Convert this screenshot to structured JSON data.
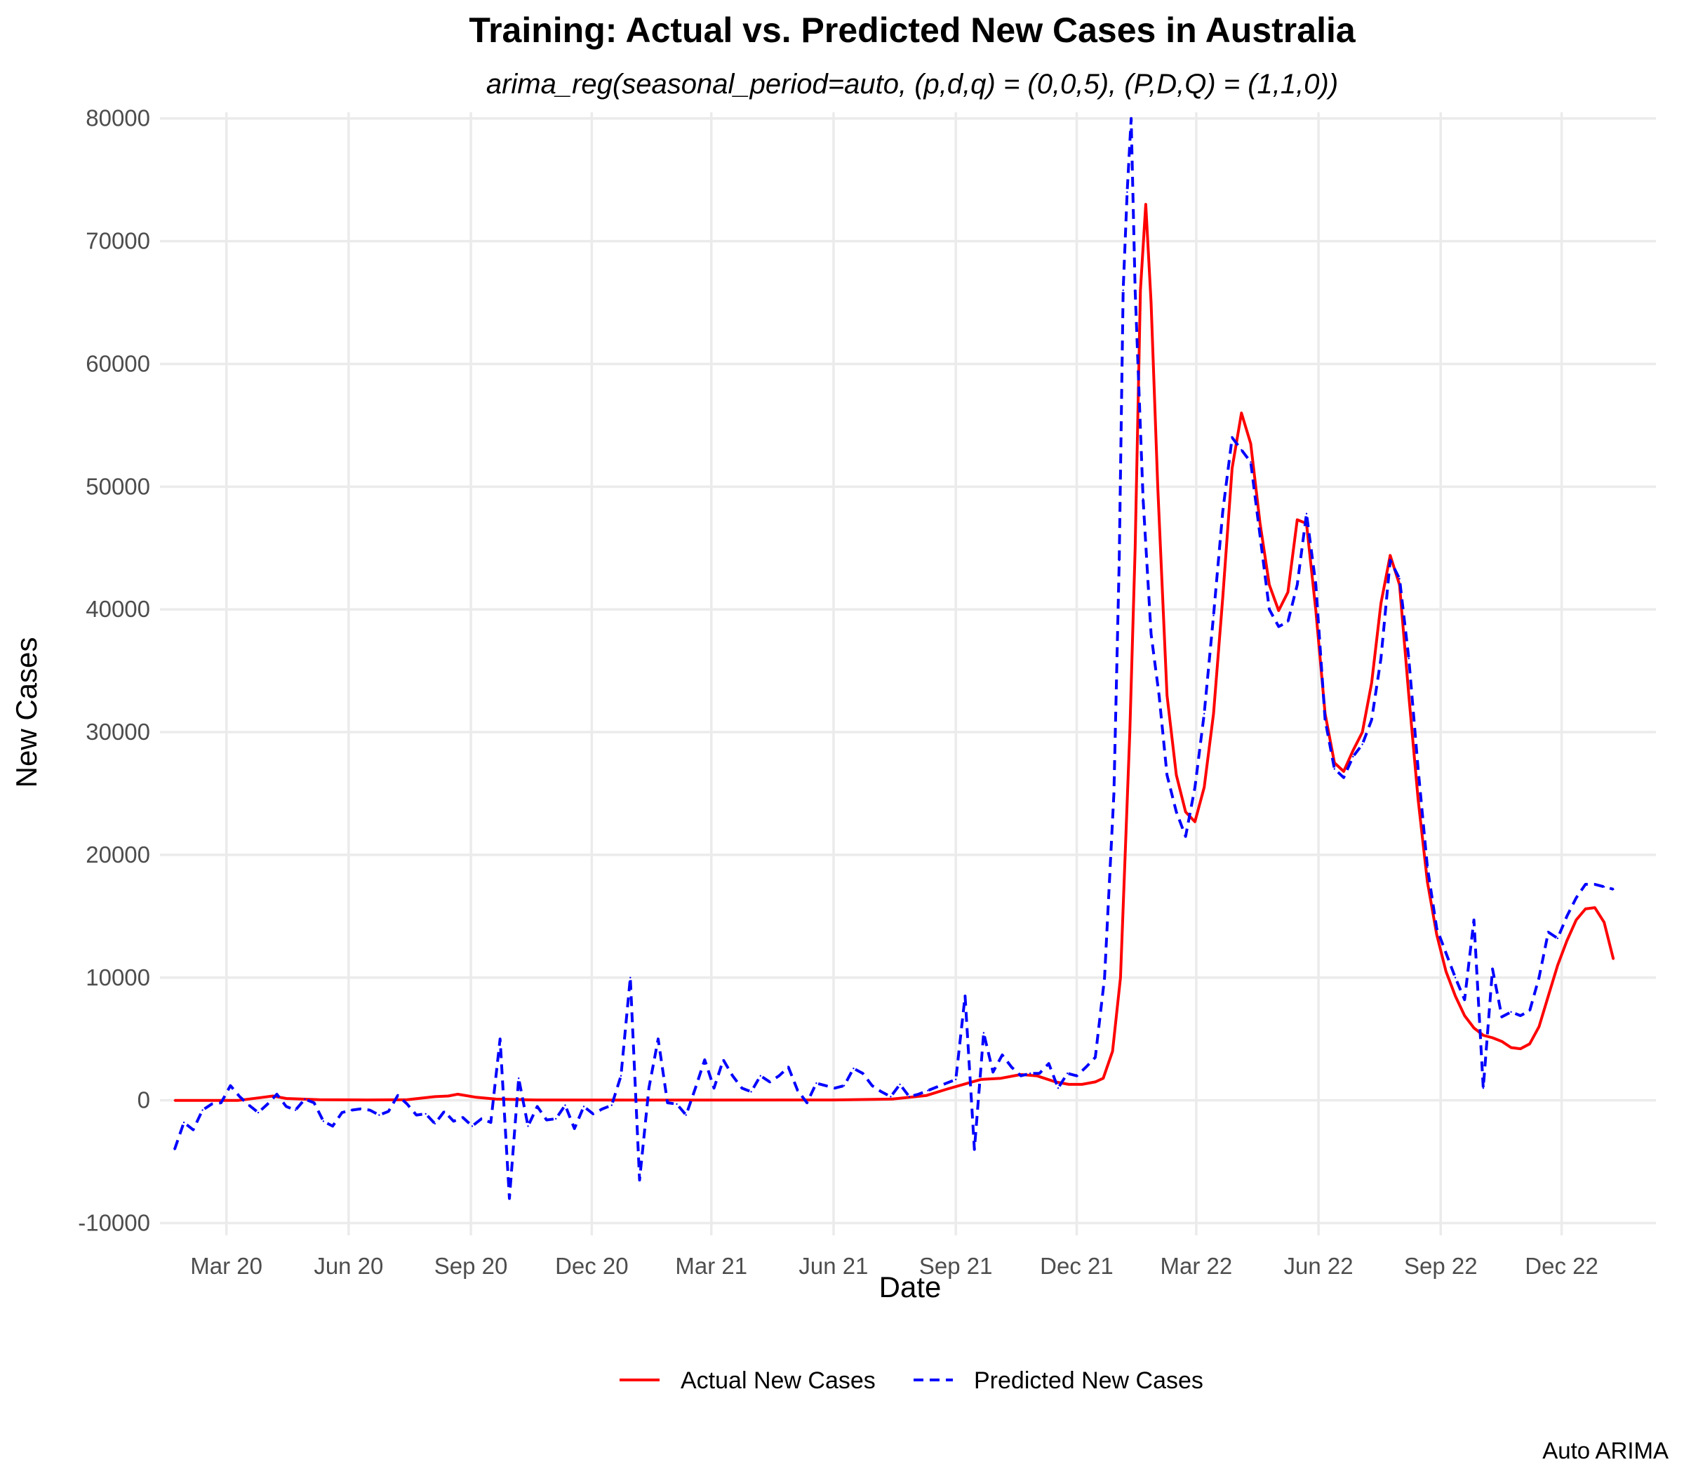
{
  "chart_data": {
    "type": "line",
    "title": "Training: Actual vs. Predicted New Cases in Australia",
    "subtitle": "arima_reg(seasonal_period=auto, (p,d,q) = (0,0,5), (P,D,Q) = (1,1,0))",
    "xlabel": "Date",
    "ylabel": "New Cases",
    "caption": "Auto ARIMA",
    "x_ticks": [
      "Mar 20",
      "Jun 20",
      "Sep 20",
      "Dec 20",
      "Mar 21",
      "Jun 21",
      "Sep 21",
      "Dec 21",
      "Mar 22",
      "Jun 22",
      "Sep 22",
      "Dec 22"
    ],
    "y_ticks": [
      "-10000",
      "0",
      "10000",
      "20000",
      "30000",
      "40000",
      "50000",
      "60000",
      "70000",
      "80000"
    ],
    "xlim": [
      "2020-01-11",
      "2023-02-10"
    ],
    "ylim": [
      -11000,
      80500
    ],
    "grid": true,
    "legend_position": "bottom",
    "series": [
      {
        "name": "Actual New Cases",
        "color": "#ff0000",
        "dash": "solid",
        "points": [
          [
            "2020-01-22",
            0
          ],
          [
            "2020-02-20",
            0
          ],
          [
            "2020-03-10",
            0
          ],
          [
            "2020-03-25",
            200
          ],
          [
            "2020-04-05",
            350
          ],
          [
            "2020-04-15",
            150
          ],
          [
            "2020-05-10",
            50
          ],
          [
            "2020-06-15",
            30
          ],
          [
            "2020-07-15",
            50
          ],
          [
            "2020-08-05",
            300
          ],
          [
            "2020-08-15",
            350
          ],
          [
            "2020-08-22",
            500
          ],
          [
            "2020-09-05",
            250
          ],
          [
            "2020-09-20",
            100
          ],
          [
            "2020-10-20",
            30
          ],
          [
            "2021-03-01",
            20
          ],
          [
            "2021-06-01",
            30
          ],
          [
            "2021-07-15",
            100
          ],
          [
            "2021-08-10",
            400
          ],
          [
            "2021-08-25",
            900
          ],
          [
            "2021-09-10",
            1400
          ],
          [
            "2021-09-20",
            1700
          ],
          [
            "2021-10-05",
            1800
          ],
          [
            "2021-10-20",
            2100
          ],
          [
            "2021-11-01",
            2000
          ],
          [
            "2021-11-15",
            1500
          ],
          [
            "2021-11-25",
            1300
          ],
          [
            "2021-12-05",
            1300
          ],
          [
            "2021-12-15",
            1500
          ],
          [
            "2021-12-21",
            1800
          ],
          [
            "2021-12-28",
            4000
          ],
          [
            "2022-01-03",
            10000
          ],
          [
            "2022-01-10",
            30000
          ],
          [
            "2022-01-14",
            45000
          ],
          [
            "2022-01-18",
            66000
          ],
          [
            "2022-01-22",
            73000
          ],
          [
            "2022-01-26",
            65000
          ],
          [
            "2022-01-31",
            50000
          ],
          [
            "2022-02-07",
            33000
          ],
          [
            "2022-02-14",
            26500
          ],
          [
            "2022-02-21",
            23500
          ],
          [
            "2022-02-28",
            22700
          ],
          [
            "2022-03-07",
            25500
          ],
          [
            "2022-03-14",
            31500
          ],
          [
            "2022-03-21",
            41000
          ],
          [
            "2022-03-28",
            51500
          ],
          [
            "2022-04-04",
            56000
          ],
          [
            "2022-04-11",
            53500
          ],
          [
            "2022-04-18",
            47000
          ],
          [
            "2022-04-25",
            42000
          ],
          [
            "2022-05-02",
            39900
          ],
          [
            "2022-05-09",
            41400
          ],
          [
            "2022-05-16",
            47300
          ],
          [
            "2022-05-23",
            47000
          ],
          [
            "2022-05-30",
            39900
          ],
          [
            "2022-06-06",
            31500
          ],
          [
            "2022-06-13",
            27500
          ],
          [
            "2022-06-20",
            26800
          ],
          [
            "2022-06-27",
            28500
          ],
          [
            "2022-07-04",
            30000
          ],
          [
            "2022-07-11",
            34000
          ],
          [
            "2022-07-18",
            40500
          ],
          [
            "2022-07-25",
            44400
          ],
          [
            "2022-08-01",
            42000
          ],
          [
            "2022-08-08",
            33000
          ],
          [
            "2022-08-15",
            24500
          ],
          [
            "2022-08-22",
            17800
          ],
          [
            "2022-08-29",
            13500
          ],
          [
            "2022-09-05",
            10500
          ],
          [
            "2022-09-12",
            8500
          ],
          [
            "2022-09-19",
            6900
          ],
          [
            "2022-09-26",
            5900
          ],
          [
            "2022-10-03",
            5300
          ],
          [
            "2022-10-10",
            5100
          ],
          [
            "2022-10-17",
            4800
          ],
          [
            "2022-10-24",
            4300
          ],
          [
            "2022-10-31",
            4200
          ],
          [
            "2022-11-07",
            4600
          ],
          [
            "2022-11-14",
            6000
          ],
          [
            "2022-11-21",
            8500
          ],
          [
            "2022-11-28",
            11000
          ],
          [
            "2022-12-05",
            13000
          ],
          [
            "2022-12-12",
            14700
          ],
          [
            "2022-12-19",
            15600
          ],
          [
            "2022-12-26",
            15700
          ],
          [
            "2023-01-02",
            14500
          ],
          [
            "2023-01-09",
            11500
          ]
        ]
      },
      {
        "name": "Predicted New Cases",
        "color": "#0000ff",
        "dash": "dashed",
        "points": [
          [
            "2020-01-22",
            -4000
          ],
          [
            "2020-01-29",
            -1800
          ],
          [
            "2020-02-05",
            -2400
          ],
          [
            "2020-02-12",
            -800
          ],
          [
            "2020-02-19",
            -300
          ],
          [
            "2020-02-26",
            -200
          ],
          [
            "2020-03-04",
            1200
          ],
          [
            "2020-03-11",
            300
          ],
          [
            "2020-03-18",
            -400
          ],
          [
            "2020-03-25",
            -1000
          ],
          [
            "2020-04-01",
            -300
          ],
          [
            "2020-04-08",
            500
          ],
          [
            "2020-04-15",
            -500
          ],
          [
            "2020-04-22",
            -800
          ],
          [
            "2020-04-29",
            100
          ],
          [
            "2020-05-06",
            -200
          ],
          [
            "2020-05-13",
            -1700
          ],
          [
            "2020-05-20",
            -2100
          ],
          [
            "2020-05-27",
            -1000
          ],
          [
            "2020-06-03",
            -800
          ],
          [
            "2020-06-10",
            -700
          ],
          [
            "2020-06-17",
            -800
          ],
          [
            "2020-06-24",
            -1200
          ],
          [
            "2020-07-01",
            -900
          ],
          [
            "2020-07-08",
            400
          ],
          [
            "2020-07-15",
            -300
          ],
          [
            "2020-07-22",
            -1200
          ],
          [
            "2020-07-29",
            -1100
          ],
          [
            "2020-08-05",
            -1900
          ],
          [
            "2020-08-12",
            -900
          ],
          [
            "2020-08-19",
            -1700
          ],
          [
            "2020-08-26",
            -1400
          ],
          [
            "2020-09-02",
            -2100
          ],
          [
            "2020-09-09",
            -1500
          ],
          [
            "2020-09-16",
            -1800
          ],
          [
            "2020-09-23",
            5000
          ],
          [
            "2020-09-30",
            -8000
          ],
          [
            "2020-10-07",
            1800
          ],
          [
            "2020-10-14",
            -2100
          ],
          [
            "2020-10-21",
            -500
          ],
          [
            "2020-10-28",
            -1600
          ],
          [
            "2020-11-04",
            -1500
          ],
          [
            "2020-11-11",
            -400
          ],
          [
            "2020-11-18",
            -2300
          ],
          [
            "2020-11-25",
            -500
          ],
          [
            "2020-12-02",
            -1100
          ],
          [
            "2020-12-09",
            -700
          ],
          [
            "2020-12-16",
            -400
          ],
          [
            "2020-12-23",
            2000
          ],
          [
            "2020-12-30",
            10000
          ],
          [
            "2021-01-06",
            -6500
          ],
          [
            "2021-01-13",
            1000
          ],
          [
            "2021-01-20",
            5000
          ],
          [
            "2021-01-27",
            -200
          ],
          [
            "2021-02-03",
            -300
          ],
          [
            "2021-02-10",
            -1200
          ],
          [
            "2021-02-17",
            1000
          ],
          [
            "2021-02-24",
            3300
          ],
          [
            "2021-03-03",
            1000
          ],
          [
            "2021-03-10",
            3300
          ],
          [
            "2021-03-17",
            2000
          ],
          [
            "2021-03-24",
            1000
          ],
          [
            "2021-03-31",
            700
          ],
          [
            "2021-04-07",
            2000
          ],
          [
            "2021-04-14",
            1500
          ],
          [
            "2021-04-21",
            2000
          ],
          [
            "2021-04-28",
            2700
          ],
          [
            "2021-05-05",
            800
          ],
          [
            "2021-05-12",
            -200
          ],
          [
            "2021-05-19",
            1400
          ],
          [
            "2021-05-26",
            1200
          ],
          [
            "2021-06-02",
            1000
          ],
          [
            "2021-06-09",
            1200
          ],
          [
            "2021-06-16",
            2600
          ],
          [
            "2021-06-23",
            2200
          ],
          [
            "2021-06-30",
            1200
          ],
          [
            "2021-07-07",
            700
          ],
          [
            "2021-07-14",
            300
          ],
          [
            "2021-07-21",
            1300
          ],
          [
            "2021-07-28",
            300
          ],
          [
            "2021-08-04",
            500
          ],
          [
            "2021-08-11",
            800
          ],
          [
            "2021-08-18",
            1100
          ],
          [
            "2021-08-25",
            1400
          ],
          [
            "2021-09-01",
            1700
          ],
          [
            "2021-09-08",
            8500
          ],
          [
            "2021-09-15",
            -4000
          ],
          [
            "2021-09-22",
            5500
          ],
          [
            "2021-09-29",
            2300
          ],
          [
            "2021-10-06",
            3700
          ],
          [
            "2021-10-13",
            2700
          ],
          [
            "2021-10-20",
            2000
          ],
          [
            "2021-10-27",
            2200
          ],
          [
            "2021-11-03",
            2200
          ],
          [
            "2021-11-10",
            3000
          ],
          [
            "2021-11-17",
            1000
          ],
          [
            "2021-11-24",
            2200
          ],
          [
            "2021-12-01",
            2000
          ],
          [
            "2021-12-08",
            2700
          ],
          [
            "2021-12-15",
            3500
          ],
          [
            "2021-12-22",
            10000
          ],
          [
            "2021-12-29",
            25000
          ],
          [
            "2022-01-02",
            44000
          ],
          [
            "2022-01-05",
            66000
          ],
          [
            "2022-01-08",
            74000
          ],
          [
            "2022-01-11",
            80000
          ],
          [
            "2022-01-14",
            66000
          ],
          [
            "2022-01-20",
            49000
          ],
          [
            "2022-01-26",
            38000
          ],
          [
            "2022-02-01",
            33000
          ],
          [
            "2022-02-07",
            26500
          ],
          [
            "2022-02-14",
            23500
          ],
          [
            "2022-02-21",
            21500
          ],
          [
            "2022-02-28",
            25500
          ],
          [
            "2022-03-07",
            31500
          ],
          [
            "2022-03-14",
            39500
          ],
          [
            "2022-03-21",
            48000
          ],
          [
            "2022-03-28",
            54000
          ],
          [
            "2022-04-04",
            53000
          ],
          [
            "2022-04-11",
            52000
          ],
          [
            "2022-04-18",
            46000
          ],
          [
            "2022-04-25",
            40000
          ],
          [
            "2022-05-02",
            38600
          ],
          [
            "2022-05-09",
            39000
          ],
          [
            "2022-05-16",
            42000
          ],
          [
            "2022-05-23",
            47800
          ],
          [
            "2022-05-30",
            42000
          ],
          [
            "2022-06-06",
            31000
          ],
          [
            "2022-06-13",
            27000
          ],
          [
            "2022-06-20",
            26300
          ],
          [
            "2022-06-27",
            28000
          ],
          [
            "2022-07-04",
            29000
          ],
          [
            "2022-07-11",
            31000
          ],
          [
            "2022-07-18",
            36000
          ],
          [
            "2022-07-25",
            44000
          ],
          [
            "2022-08-01",
            42500
          ],
          [
            "2022-08-08",
            36000
          ],
          [
            "2022-08-15",
            27000
          ],
          [
            "2022-08-22",
            19000
          ],
          [
            "2022-08-29",
            14000
          ],
          [
            "2022-09-05",
            12000
          ],
          [
            "2022-09-12",
            10000
          ],
          [
            "2022-09-19",
            8200
          ],
          [
            "2022-09-26",
            14700
          ],
          [
            "2022-10-03",
            1000
          ],
          [
            "2022-10-10",
            10700
          ],
          [
            "2022-10-17",
            6800
          ],
          [
            "2022-10-24",
            7200
          ],
          [
            "2022-10-31",
            6900
          ],
          [
            "2022-11-07",
            7300
          ],
          [
            "2022-11-14",
            10000
          ],
          [
            "2022-11-21",
            13700
          ],
          [
            "2022-11-28",
            13200
          ],
          [
            "2022-12-05",
            15000
          ],
          [
            "2022-12-12",
            16500
          ],
          [
            "2022-12-19",
            17600
          ],
          [
            "2022-12-26",
            17600
          ],
          [
            "2023-01-02",
            17400
          ],
          [
            "2023-01-09",
            17200
          ]
        ]
      }
    ]
  }
}
